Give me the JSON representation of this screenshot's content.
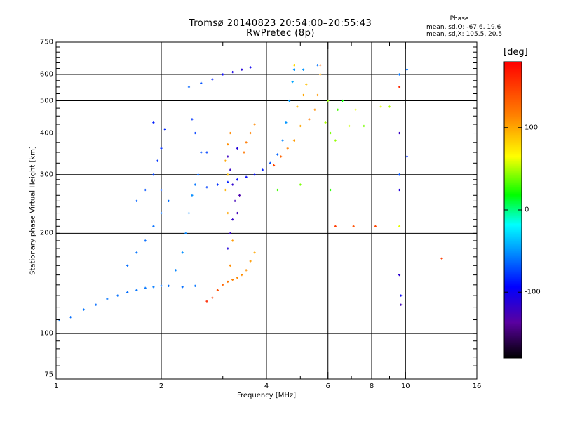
{
  "chart_data": {
    "type": "scatter",
    "title": "Tromsø 20140823 20:54:00–20:55:43",
    "subtitle": "RwPretec (8p)",
    "xlabel": "Frequency [MHz]",
    "ylabel": "Stationary phase Virtual Height [km]",
    "x_scale": "log",
    "y_scale": "log",
    "xlim": [
      1,
      16
    ],
    "ylim": [
      73,
      750
    ],
    "x_ticks": [
      1,
      2,
      4,
      6,
      8,
      10,
      16
    ],
    "x_tick_labels": [
      "1",
      "2",
      "4",
      "6",
      "8",
      "10",
      "16"
    ],
    "y_ticks": [
      75,
      100,
      200,
      300,
      400,
      500,
      600,
      750
    ],
    "y_tick_labels": [
      "75",
      "100",
      "200",
      "300",
      "400",
      "500",
      "600",
      "750"
    ],
    "grid": true,
    "colorbar": {
      "label": "[deg]",
      "range": [
        -180,
        180
      ],
      "tick_values": [
        100,
        0,
        -100
      ],
      "tick_labels": [
        "100",
        "0",
        "-100"
      ],
      "colormap": "rainbow"
    },
    "stats": {
      "heading": "Phase",
      "line1": "mean, sd,O: -67.6, 19.6",
      "line2": "mean, sd,X: 105.5, 20.5"
    },
    "series": [
      {
        "points": [
          [
            1.02,
            110
          ],
          [
            1.1,
            112
          ],
          [
            1.2,
            118
          ],
          [
            1.3,
            122
          ],
          [
            1.4,
            127
          ],
          [
            1.5,
            130
          ],
          [
            1.6,
            133
          ],
          [
            1.7,
            135
          ],
          [
            1.8,
            137
          ],
          [
            1.9,
            138
          ],
          [
            2.0,
            139
          ],
          [
            2.1,
            139
          ],
          [
            2.3,
            138
          ],
          [
            2.5,
            139
          ],
          [
            1.6,
            160
          ],
          [
            1.7,
            175
          ],
          [
            1.8,
            190
          ],
          [
            1.9,
            210
          ],
          [
            2.0,
            230
          ],
          [
            2.1,
            250
          ],
          [
            2.0,
            270
          ],
          [
            1.9,
            300
          ],
          [
            1.95,
            330
          ],
          [
            2.0,
            360
          ],
          [
            2.05,
            410
          ],
          [
            1.9,
            430
          ],
          [
            2.2,
            155
          ],
          [
            2.3,
            175
          ],
          [
            2.35,
            200
          ],
          [
            2.4,
            230
          ],
          [
            2.45,
            260
          ],
          [
            2.5,
            280
          ],
          [
            2.55,
            300
          ],
          [
            2.6,
            350
          ],
          [
            2.5,
            400
          ],
          [
            2.45,
            440
          ],
          [
            2.4,
            550
          ],
          [
            2.6,
            565
          ],
          [
            2.8,
            580
          ],
          [
            3.0,
            600
          ],
          [
            3.2,
            610
          ],
          [
            3.4,
            620
          ],
          [
            3.6,
            630
          ],
          [
            2.7,
            275
          ],
          [
            2.9,
            280
          ],
          [
            3.1,
            285
          ],
          [
            3.3,
            290
          ],
          [
            3.5,
            295
          ],
          [
            3.7,
            300
          ],
          [
            3.9,
            310
          ],
          [
            4.1,
            325
          ],
          [
            4.3,
            345
          ],
          [
            4.45,
            380
          ],
          [
            4.55,
            430
          ],
          [
            4.65,
            500
          ],
          [
            4.75,
            570
          ],
          [
            4.8,
            620
          ],
          [
            9.6,
            600
          ],
          [
            9.6,
            300
          ],
          [
            9.7,
            130
          ],
          [
            10.1,
            620
          ],
          [
            10.1,
            340
          ],
          [
            1.7,
            250
          ],
          [
            1.8,
            270
          ],
          [
            2.7,
            350
          ],
          [
            5.1,
            620
          ],
          [
            5.6,
            640
          ]
        ],
        "phase": [
          -60,
          -62,
          -60,
          -63,
          -60,
          -61,
          -62,
          -60,
          -59,
          -58,
          -60,
          -61,
          -62,
          -60,
          -62,
          -60,
          -63,
          -61,
          -60,
          -62,
          -70,
          -75,
          -78,
          -80,
          -82,
          -85,
          -55,
          -52,
          -55,
          -54,
          -53,
          -60,
          -65,
          -70,
          -75,
          -78,
          -65,
          -70,
          -85,
          -95,
          -105,
          -110,
          -100,
          -75,
          -80,
          -85,
          -90,
          -92,
          -90,
          -85,
          -70,
          -65,
          -55,
          -50,
          -48,
          -45,
          -50,
          -60,
          -70,
          -95,
          -60,
          -80,
          -65,
          -70,
          -75,
          -50,
          -60
        ]
      },
      {
        "points": [
          [
            3.1,
            180
          ],
          [
            3.15,
            200
          ],
          [
            3.2,
            220
          ],
          [
            3.25,
            250
          ],
          [
            3.2,
            280
          ],
          [
            3.15,
            310
          ],
          [
            3.1,
            340
          ],
          [
            3.3,
            360
          ],
          [
            3.35,
            260
          ],
          [
            3.3,
            230
          ],
          [
            9.6,
            400
          ],
          [
            9.6,
            270
          ],
          [
            9.6,
            150
          ],
          [
            9.7,
            122
          ]
        ],
        "phase": [
          -110,
          -120,
          -118,
          -125,
          -115,
          -120,
          -122,
          -110,
          -130,
          -125,
          -120,
          -110,
          -115,
          -125
        ]
      },
      {
        "points": [
          [
            2.7,
            125
          ],
          [
            2.8,
            128
          ],
          [
            2.9,
            135
          ],
          [
            3.0,
            140
          ],
          [
            3.1,
            143
          ],
          [
            3.2,
            145
          ],
          [
            3.3,
            147
          ],
          [
            3.4,
            150
          ],
          [
            3.5,
            155
          ],
          [
            3.6,
            165
          ],
          [
            3.7,
            175
          ],
          [
            3.15,
            160
          ],
          [
            3.2,
            190
          ],
          [
            3.1,
            230
          ],
          [
            3.05,
            270
          ],
          [
            3.1,
            300
          ],
          [
            3.05,
            330
          ],
          [
            3.1,
            370
          ],
          [
            3.15,
            400
          ],
          [
            3.45,
            350
          ],
          [
            3.5,
            375
          ],
          [
            3.6,
            400
          ],
          [
            3.7,
            425
          ],
          [
            4.2,
            320
          ],
          [
            4.4,
            340
          ],
          [
            4.6,
            360
          ],
          [
            4.8,
            380
          ],
          [
            5.0,
            420
          ],
          [
            5.3,
            440
          ],
          [
            5.5,
            470
          ],
          [
            5.6,
            520
          ],
          [
            5.7,
            600
          ],
          [
            4.9,
            480
          ],
          [
            5.1,
            520
          ],
          [
            5.2,
            560
          ],
          [
            4.8,
            640
          ],
          [
            5.7,
            640
          ],
          [
            6.3,
            210
          ],
          [
            7.1,
            210
          ],
          [
            8.2,
            210
          ],
          [
            9.6,
            550
          ],
          [
            12.7,
            168
          ]
        ],
        "phase": [
          160,
          150,
          140,
          130,
          120,
          115,
          112,
          110,
          108,
          105,
          100,
          110,
          105,
          100,
          95,
          90,
          100,
          110,
          112,
          120,
          118,
          115,
          112,
          145,
          130,
          115,
          105,
          100,
          120,
          110,
          105,
          100,
          95,
          100,
          90,
          80,
          130,
          150,
          140,
          145,
          160,
          150
        ]
      },
      {
        "points": [
          [
            5.9,
            430
          ],
          [
            6.1,
            400
          ],
          [
            6.3,
            380
          ],
          [
            6.4,
            470
          ],
          [
            6.6,
            500
          ],
          [
            6.9,
            420
          ],
          [
            7.2,
            470
          ],
          [
            7.6,
            420
          ],
          [
            8.5,
            480
          ],
          [
            9.0,
            480
          ],
          [
            6.0,
            500
          ],
          [
            4.3,
            270
          ],
          [
            5.0,
            280
          ],
          [
            6.1,
            270
          ],
          [
            9.6,
            210
          ]
        ],
        "phase": [
          50,
          40,
          45,
          30,
          20,
          55,
          60,
          40,
          60,
          50,
          45,
          30,
          40,
          25,
          60
        ]
      }
    ]
  }
}
